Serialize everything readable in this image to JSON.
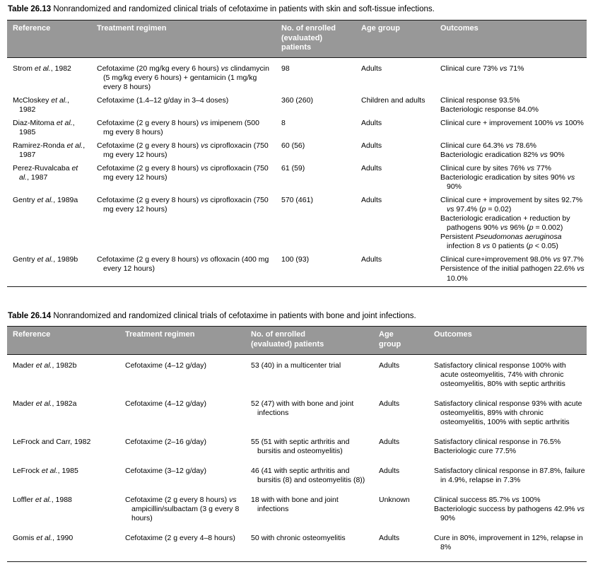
{
  "theme": {
    "page_bg": "#ffffff",
    "text": "#000000",
    "header_bg": "#989898",
    "header_text": "#ffffff",
    "rule": "#1a1a1a"
  },
  "tables": [
    {
      "caption_label": "Table 26.13",
      "caption_text": "Nonrandomized and randomized clinical trials of cefotaxime in patients with skin and soft-tissue infections.",
      "headers": [
        "Reference",
        "Treatment regimen",
        "No. of enrolled\n(evaluated)\npatients",
        "Age group",
        "Outcomes"
      ],
      "rows": [
        {
          "reference": "Strom *et al.*, 1982",
          "treatment": "Cefotaxime (20 mg/kg every 6 hours) *vs* clindamycin (5 mg/kg every 6 hours) + gentamicin (1 mg/kg every 8 hours)",
          "patients": "98",
          "age_group": "Adults",
          "outcomes": "Clinical cure 73% *vs* 71%"
        },
        {
          "reference": "McCloskey *et al.*, 1982",
          "treatment": "Cefotaxime (1.4–12 g/day in 3–4 doses)",
          "patients": "360 (260)",
          "age_group": "Children and adults",
          "outcomes": "Clinical response 93.5%\nBacteriologic response 84.0%"
        },
        {
          "reference": "Diaz-Mitoma *et al.*, 1985",
          "treatment": "Cefotaxime (2 g every 8 hours) *vs* imipenem (500 mg every 8 hours)",
          "patients": "8",
          "age_group": "Adults",
          "outcomes": "Clinical cure + improvement 100% *vs* 100%"
        },
        {
          "reference": "Ramirez-Ronda *et al.*, 1987",
          "treatment": "Cefotaxime (2 g every 8 hours) *vs* ciprofloxacin (750 mg every 12 hours)",
          "patients": "60 (56)",
          "age_group": "Adults",
          "outcomes": "Clinical cure 64.3% *vs* 78.6%\nBacteriologic eradication 82% *vs* 90%"
        },
        {
          "reference": "Perez-Ruvalcaba *et al.*, 1987",
          "treatment": "Cefotaxime (2 g every 8 hours) *vs* ciprofloxacin (750 mg every 12 hours)",
          "patients": "61 (59)",
          "age_group": "Adults",
          "outcomes": "Clinical cure by sites 76% *vs* 77%\nBacteriologic eradication by sites 90% *vs* 90%"
        },
        {
          "reference": "Gentry *et al.*, 1989a",
          "treatment": "Cefotaxime (2 g every 8 hours) *vs* ciprofloxacin (750 mg every 12 hours)",
          "patients": "570 (461)",
          "age_group": "Adults",
          "outcomes": "Clinical cure + improvement by sites 92.7% *vs* 97.4% (*p* = 0.02)\nBacteriologic eradication + reduction by pathogens 90% *vs* 96% (*p* = 0.002)\nPersistent *Pseudomonas aeruginosa* infection 8 *vs* 0 patients (*p* < 0.05)"
        },
        {
          "reference": "Gentry *et al.*, 1989b",
          "treatment": "Cefotaxime (2 g every 8 hours) *vs* ofloxacin (400 mg every 12 hours)",
          "patients": "100 (93)",
          "age_group": "Adults",
          "outcomes": "Clinical cure+improvement 98.0% *vs* 97.7%\nPersistence of the initial pathogen 22.6% *vs* 10.0%"
        }
      ]
    },
    {
      "caption_label": "Table 26.14",
      "caption_text": "Nonrandomized and randomized clinical trials of cefotaxime in patients with bone and joint infections.",
      "headers": [
        "Reference",
        "Treatment regimen",
        "No. of enrolled\n(evaluated) patients",
        "Age\ngroup",
        "Outcomes"
      ],
      "rows": [
        {
          "reference": "Mader *et al.*, 1982b",
          "treatment": "Cefotaxime (4–12 g/day)",
          "patients": "53 (40) in a multicenter trial",
          "age_group": "Adults",
          "outcomes": "Satisfactory clinical response 100% with acute osteomyelitis, 74% with chronic osteomyelitis, 80% with septic arthritis"
        },
        {
          "reference": "Mader *et al.*, 1982a",
          "treatment": "Cefotaxime (4–12 g/day)",
          "patients": "52 (47) with with bone and joint infections",
          "age_group": "Adults",
          "outcomes": "Satisfactory clinical response 93% with acute osteomyelitis, 89% with chronic osteomyelitis, 100% with septic arthritis"
        },
        {
          "reference": "LeFrock and Carr, 1982",
          "treatment": "Cefotaxime (2–16 g/day)",
          "patients": "55 (51 with septic arthritis and bursitis and osteomyelitis)",
          "age_group": "Adults",
          "outcomes": "Satisfactory clinical response in 76.5%\nBacteriologic cure 77.5%"
        },
        {
          "reference": "LeFrock *et al.*, 1985",
          "treatment": "Cefotaxime (3–12 g/day)",
          "patients": "46 (41 with septic arthritis and bursitis (8) and osteomyelitis (8))",
          "age_group": "Adults",
          "outcomes": "Satisfactory clinical response in 87.8%, failure in 4.9%, relapse in 7.3%"
        },
        {
          "reference": "Loffler *et al.*, 1988",
          "treatment": "Cefotaxime (2 g every 8 hours) *vs* ampicillin/sulbactam (3 g every 8 hours)",
          "patients": "18 with with bone and joint infections",
          "age_group": "Unknown",
          "outcomes": "Clinical success 85.7% *vs* 100%\nBacteriologic success by pathogens 42.9% *vs* 90%"
        },
        {
          "reference": "Gomis *et al.*, 1990",
          "treatment": "Cefotaxime (2 g every 4–8 hours)",
          "patients": "50 with chronic osteomyelitis",
          "age_group": "Adults",
          "outcomes": "Cure in 80%, improvement in 12%, relapse in 8%"
        }
      ]
    }
  ]
}
